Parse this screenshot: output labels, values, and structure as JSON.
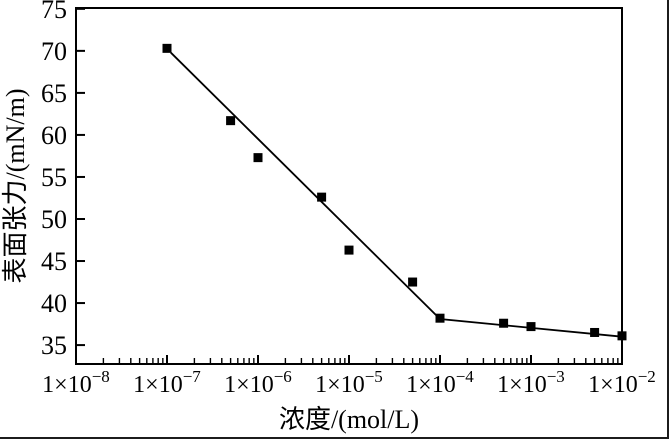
{
  "chart_data": {
    "type": "scatter",
    "title": "",
    "xlabel": "浓度/(mol/L)",
    "ylabel": "表面张力/(mN/m)",
    "x_scale": "log",
    "x_log_range": [
      -8,
      -2
    ],
    "y_range": [
      32.75,
      75.1
    ],
    "grid": false,
    "legend": false,
    "color": "#000000",
    "background": "#ffffff",
    "y_ticks": [
      {
        "value": 75,
        "label": "75"
      },
      {
        "value": 70,
        "label": "70"
      },
      {
        "value": 65,
        "label": "65"
      },
      {
        "value": 60,
        "label": "60"
      },
      {
        "value": 55,
        "label": "55"
      },
      {
        "value": 50,
        "label": "50"
      },
      {
        "value": 45,
        "label": "45"
      },
      {
        "value": 40,
        "label": "40"
      },
      {
        "value": 35,
        "label": "35"
      }
    ],
    "x_ticks": [
      {
        "log10": -8,
        "mantissa": "1×10",
        "exponent": "−8"
      },
      {
        "log10": -7,
        "mantissa": "1×10",
        "exponent": "−7"
      },
      {
        "log10": -6,
        "mantissa": "1×10",
        "exponent": "−6"
      },
      {
        "log10": -5,
        "mantissa": "1×10",
        "exponent": "−5"
      },
      {
        "log10": -4,
        "mantissa": "1×10",
        "exponent": "−4"
      },
      {
        "log10": -3,
        "mantissa": "1×10",
        "exponent": "−3"
      },
      {
        "log10": -2,
        "mantissa": "1×10",
        "exponent": "−2"
      }
    ],
    "series": [
      {
        "name": "fit-line",
        "type": "line",
        "points": [
          [
            1.1e-07,
            69.8
          ],
          [
            0.0001,
            38.1
          ],
          [
            0.01,
            36.0
          ]
        ]
      },
      {
        "name": "measurements",
        "type": "scatter",
        "marker": "square",
        "points": [
          [
            1e-07,
            70.3
          ],
          [
            5e-07,
            61.7
          ],
          [
            1e-06,
            57.3
          ],
          [
            5e-06,
            52.6
          ],
          [
            1e-05,
            46.3
          ],
          [
            5e-05,
            42.5
          ],
          [
            0.0001,
            38.2
          ],
          [
            0.0005,
            37.6
          ],
          [
            0.001,
            37.2
          ],
          [
            0.005,
            36.5
          ],
          [
            0.01,
            36.1
          ]
        ]
      }
    ]
  }
}
